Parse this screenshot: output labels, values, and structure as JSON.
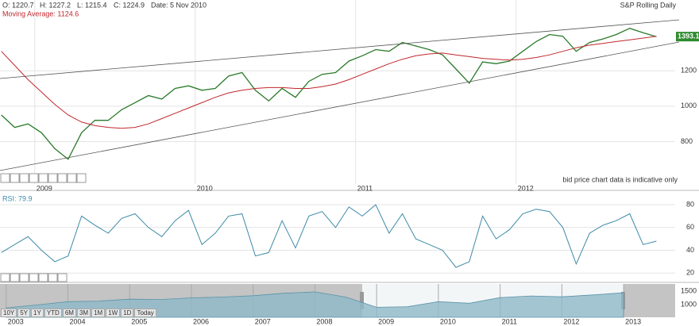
{
  "header": {
    "open": "O: 1220.7",
    "high": "H: 1227.2",
    "low": "L: 1215.4",
    "close": "C: 1224.9",
    "date": "Date: 5 Nov 2010",
    "moving_average": "Moving Average: 1124.6",
    "instrument": "S&P Rolling Daily",
    "disclaimer": "bid price chart data is indicative only"
  },
  "range_buttons": [
    "10Y",
    "5Y",
    "1Y",
    "YTD",
    "6M",
    "3M",
    "1M",
    "1W",
    "1D",
    "Today"
  ],
  "chart_data": [
    {
      "type": "line",
      "current_price": 1393.1,
      "current_color": "#2e8b2e",
      "xlim": [
        -0.1,
        50.4
      ],
      "ylim": [
        560,
        1600
      ],
      "yticks": [
        800,
        1000,
        1200
      ],
      "xticks": [
        {
          "value": 2.5,
          "label": "2009"
        },
        {
          "value": 14.5,
          "label": "2010"
        },
        {
          "value": 26.5,
          "label": "2011"
        },
        {
          "value": 38.5,
          "label": "2012"
        }
      ],
      "grid": true,
      "series": [
        {
          "name": "Price",
          "color": "#2a7a2a",
          "values": [
            950,
            880,
            900,
            850,
            760,
            700,
            850,
            920,
            920,
            980,
            1020,
            1060,
            1040,
            1100,
            1115,
            1090,
            1100,
            1170,
            1190,
            1090,
            1030,
            1100,
            1050,
            1140,
            1180,
            1190,
            1255,
            1285,
            1320,
            1310,
            1360,
            1340,
            1320,
            1290,
            1210,
            1130,
            1250,
            1240,
            1255,
            1310,
            1365,
            1405,
            1395,
            1310,
            1360,
            1380,
            1405,
            1440,
            1415,
            1393.1
          ]
        },
        {
          "name": "Moving Average",
          "color": "#c0282d",
          "values": [
            1310,
            1230,
            1150,
            1080,
            1010,
            950,
            910,
            890,
            880,
            875,
            880,
            900,
            930,
            960,
            990,
            1020,
            1050,
            1075,
            1090,
            1100,
            1105,
            1105,
            1100,
            1100,
            1110,
            1125,
            1150,
            1180,
            1210,
            1240,
            1265,
            1285,
            1295,
            1300,
            1290,
            1280,
            1270,
            1265,
            1260,
            1265,
            1275,
            1290,
            1310,
            1330,
            1345,
            1355,
            1365,
            1375,
            1385,
            1395
          ]
        }
      ]
    },
    {
      "type": "line",
      "title": "RSI: 79.9",
      "xlim": [
        -0.1,
        50.4
      ],
      "ylim": [
        16,
        87
      ],
      "yticks": [
        20,
        40,
        60,
        80
      ],
      "grid": true,
      "series": [
        {
          "name": "RSI",
          "color": "#3d8aa8",
          "values": [
            38,
            45,
            52,
            40,
            30,
            35,
            70,
            62,
            55,
            68,
            72,
            60,
            52,
            66,
            75,
            45,
            55,
            70,
            72,
            35,
            38,
            66,
            42,
            70,
            74,
            60,
            78,
            70,
            80,
            55,
            72,
            50,
            45,
            40,
            25,
            30,
            70,
            50,
            58,
            72,
            76,
            74,
            60,
            28,
            55,
            62,
            66,
            72,
            45,
            48
          ]
        }
      ]
    },
    {
      "type": "area",
      "xlim": [
        -0.2,
        21.67
      ],
      "ylim": [
        530,
        1765
      ],
      "yticks": [
        1000,
        1500
      ],
      "xticks": [
        {
          "value": 0,
          "label": "2003"
        },
        {
          "value": 2,
          "label": "2004"
        },
        {
          "value": 4,
          "label": "2005"
        },
        {
          "value": 6,
          "label": "2006"
        },
        {
          "value": 8,
          "label": "2007"
        },
        {
          "value": 10,
          "label": "2008"
        },
        {
          "value": 12,
          "label": "2009"
        },
        {
          "value": 14,
          "label": "2010"
        },
        {
          "value": 16,
          "label": "2011"
        },
        {
          "value": 18,
          "label": "2012"
        },
        {
          "value": 20,
          "label": "2013"
        }
      ],
      "series": [
        {
          "name": "S&P",
          "color": "#8fb9c8",
          "values": [
            880,
            990,
            1110,
            1130,
            1200,
            1190,
            1250,
            1280,
            1330,
            1420,
            1470,
            1280,
            900,
            920,
            1110,
            1050,
            1260,
            1320,
            1290,
            1360,
            1440
          ]
        }
      ]
    }
  ]
}
